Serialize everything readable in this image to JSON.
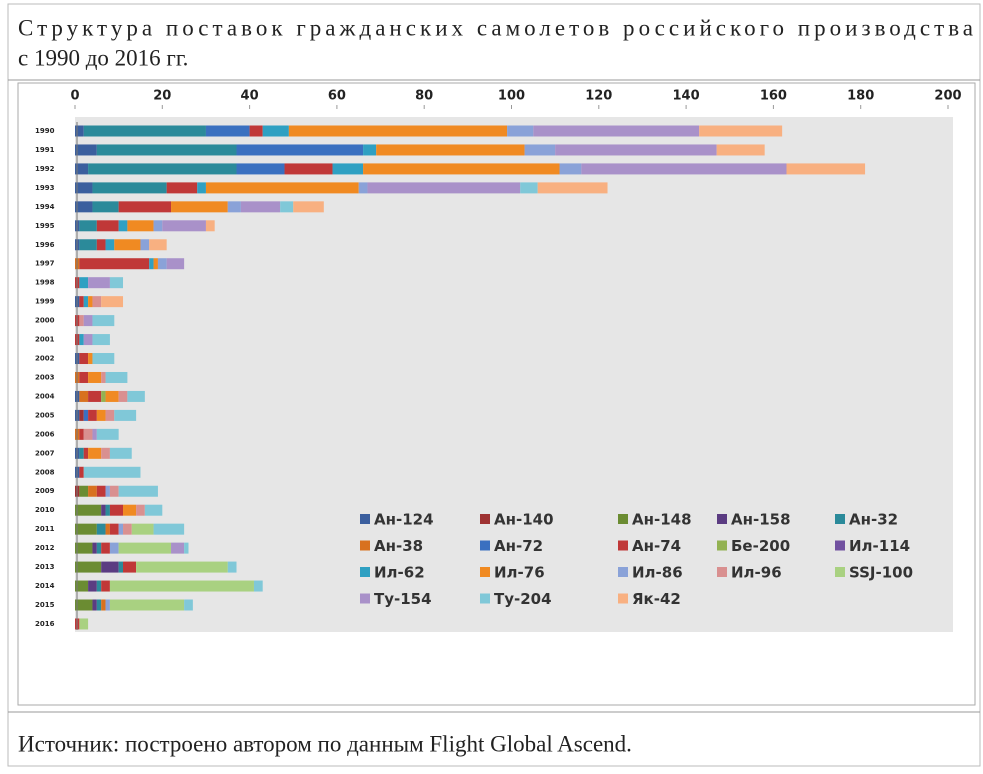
{
  "chart_data": {
    "type": "stacked_barh",
    "title_lines": [
      "Структура поставок гражданских самолетов российского производства",
      "с 1990 до 2016 гг."
    ],
    "source": "Источник: построено автором по данным Flight Global Ascend.",
    "categories": [
      "1990",
      "1991",
      "1992",
      "1993",
      "1994",
      "1995",
      "1996",
      "1997",
      "1998",
      "1999",
      "2000",
      "2001",
      "2002",
      "2003",
      "2004",
      "2005",
      "2006",
      "2007",
      "2008",
      "2009",
      "2010",
      "2011",
      "2012",
      "2013",
      "2014",
      "2015",
      "2016"
    ],
    "xlim": [
      0,
      200
    ],
    "xticks": [
      0,
      20,
      40,
      60,
      80,
      100,
      120,
      140,
      160,
      180,
      200
    ],
    "series": [
      {
        "name": "Ан-124",
        "color": "#3b5f9e",
        "values": [
          2,
          5,
          3,
          4,
          4,
          1,
          1,
          0,
          0,
          1,
          0,
          0,
          1,
          0,
          1,
          1,
          0,
          1,
          1,
          0,
          0,
          0,
          0,
          0,
          0,
          0,
          0
        ]
      },
      {
        "name": "Ан-140",
        "color": "#9e3232",
        "values": [
          0,
          0,
          0,
          0,
          0,
          0,
          0,
          0,
          0,
          0,
          0,
          0,
          0,
          0,
          0,
          1,
          0,
          0,
          0,
          1,
          0,
          0,
          0,
          0,
          0,
          0,
          0
        ]
      },
      {
        "name": "Ан-148",
        "color": "#6b8c32",
        "values": [
          0,
          0,
          0,
          0,
          0,
          0,
          0,
          0,
          0,
          0,
          0,
          0,
          0,
          0,
          0,
          0,
          0,
          0,
          0,
          2,
          6,
          5,
          4,
          6,
          3,
          4,
          0
        ]
      },
      {
        "name": "Ан-158",
        "color": "#5b3c82",
        "values": [
          0,
          0,
          0,
          0,
          0,
          0,
          0,
          0,
          0,
          0,
          0,
          0,
          0,
          0,
          0,
          0,
          0,
          0,
          0,
          0,
          1,
          0,
          1,
          4,
          2,
          1,
          0
        ]
      },
      {
        "name": "Ан-32",
        "color": "#2b8a9a",
        "values": [
          28,
          32,
          34,
          17,
          6,
          4,
          4,
          0,
          0,
          0,
          0,
          0,
          0,
          0,
          0,
          0,
          0,
          1,
          0,
          0,
          1,
          2,
          1,
          1,
          1,
          1,
          0
        ]
      },
      {
        "name": "Ан-38",
        "color": "#d8711f",
        "values": [
          0,
          0,
          0,
          0,
          0,
          0,
          0,
          1,
          0,
          0,
          0,
          0,
          0,
          1,
          2,
          0,
          1,
          0,
          0,
          2,
          0,
          1,
          0,
          0,
          0,
          1,
          0
        ]
      },
      {
        "name": "Ан-72",
        "color": "#3a70c0",
        "values": [
          10,
          29,
          11,
          0,
          0,
          0,
          0,
          0,
          0,
          0,
          0,
          0,
          0,
          0,
          0,
          1,
          0,
          0,
          0,
          0,
          0,
          0,
          0,
          0,
          0,
          0,
          0
        ]
      },
      {
        "name": "Ан-74",
        "color": "#c03838",
        "values": [
          3,
          0,
          11,
          7,
          12,
          5,
          2,
          16,
          1,
          1,
          1,
          1,
          2,
          2,
          3,
          2,
          1,
          1,
          1,
          2,
          3,
          2,
          2,
          3,
          2,
          0,
          1
        ]
      },
      {
        "name": "Бе-200",
        "color": "#93b252",
        "values": [
          0,
          0,
          0,
          0,
          0,
          0,
          0,
          0,
          0,
          0,
          0,
          0,
          0,
          0,
          1,
          0,
          0,
          0,
          0,
          0,
          0,
          0,
          0,
          0,
          0,
          0,
          0
        ]
      },
      {
        "name": "Ил-114",
        "color": "#7151a0",
        "values": [
          0,
          0,
          0,
          0,
          0,
          0,
          0,
          0,
          0,
          0,
          0,
          0,
          0,
          0,
          0,
          0,
          0,
          0,
          0,
          0,
          0,
          0,
          0,
          0,
          0,
          0,
          0
        ]
      },
      {
        "name": "Ил-62",
        "color": "#2fa0c2",
        "values": [
          6,
          3,
          7,
          2,
          0,
          2,
          2,
          1,
          2,
          1,
          0,
          1,
          0,
          0,
          0,
          0,
          0,
          0,
          0,
          0,
          0,
          0,
          0,
          0,
          0,
          0,
          0
        ]
      },
      {
        "name": "Ил-76",
        "color": "#f08a22",
        "values": [
          50,
          34,
          45,
          35,
          13,
          6,
          6,
          1,
          0,
          1,
          0,
          0,
          1,
          3,
          3,
          2,
          0,
          3,
          0,
          0,
          3,
          0,
          0,
          0,
          0,
          0,
          0
        ]
      },
      {
        "name": "Ил-86",
        "color": "#8aa2d8",
        "values": [
          6,
          7,
          5,
          2,
          3,
          2,
          2,
          2,
          0,
          0,
          0,
          0,
          0,
          0,
          0,
          0,
          0,
          0,
          0,
          1,
          0,
          1,
          2,
          0,
          0,
          1,
          0
        ]
      },
      {
        "name": "Ил-96",
        "color": "#d99090",
        "values": [
          0,
          0,
          0,
          0,
          0,
          0,
          0,
          0,
          0,
          2,
          1,
          0,
          0,
          1,
          2,
          2,
          2,
          2,
          0,
          2,
          2,
          2,
          0,
          0,
          0,
          0,
          0
        ]
      },
      {
        "name": "SSJ-100",
        "color": "#a9d181",
        "values": [
          0,
          0,
          0,
          0,
          0,
          0,
          0,
          0,
          0,
          0,
          0,
          0,
          0,
          0,
          0,
          0,
          0,
          0,
          0,
          0,
          0,
          5,
          12,
          21,
          33,
          17,
          2
        ]
      },
      {
        "name": "Ту-154",
        "color": "#a991c9",
        "values": [
          38,
          37,
          47,
          35,
          9,
          10,
          0,
          4,
          5,
          0,
          2,
          2,
          0,
          0,
          0,
          0,
          1,
          0,
          0,
          0,
          0,
          0,
          3,
          0,
          0,
          0,
          0
        ]
      },
      {
        "name": "Ту-204",
        "color": "#80c8d8",
        "values": [
          0,
          0,
          0,
          4,
          3,
          0,
          0,
          0,
          3,
          0,
          5,
          4,
          5,
          5,
          4,
          5,
          5,
          5,
          13,
          9,
          4,
          7,
          1,
          2,
          2,
          2,
          0
        ]
      },
      {
        "name": "Як-42",
        "color": "#f8b081",
        "values": [
          19,
          11,
          18,
          16,
          7,
          2,
          4,
          0,
          0,
          5,
          0,
          0,
          0,
          0,
          0,
          0,
          0,
          0,
          0,
          0,
          0,
          0,
          0,
          0,
          0,
          0,
          0
        ]
      }
    ]
  }
}
